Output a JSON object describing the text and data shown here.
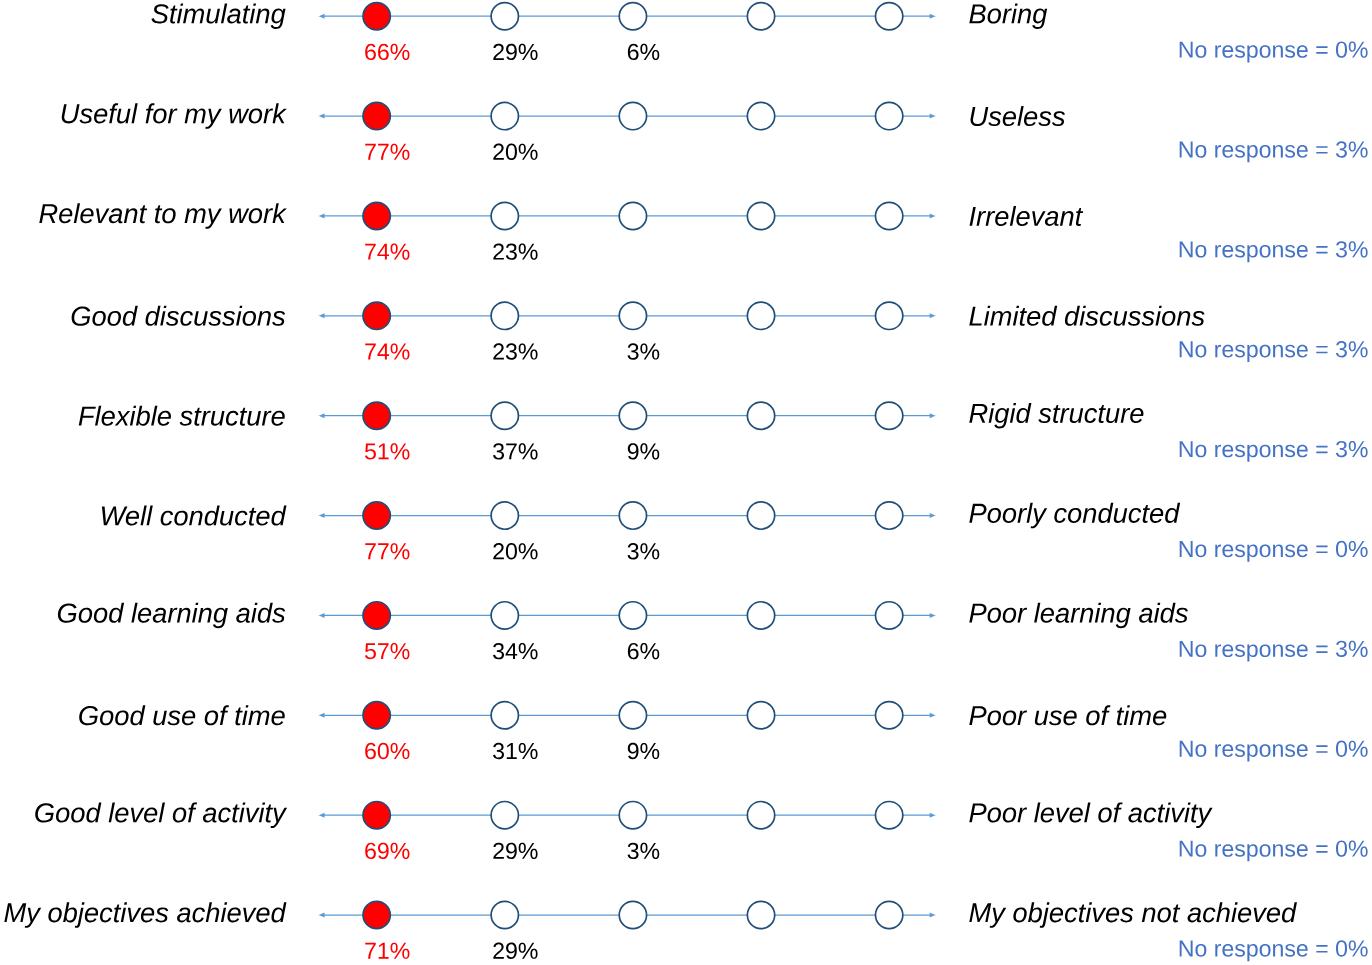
{
  "chart_data": {
    "type": "heatmap",
    "categories": [
      null,
      null,
      null,
      null,
      null
    ],
    "colors": [
      "#ff0000",
      "#1f4e79",
      "#1f4e79",
      "#1f4e79",
      "#1f4e79"
    ],
    "y_categories": [
      "Stimulating",
      "Useful for my work",
      "Relevant to my work",
      "Good discussions",
      "Flexible structure",
      "Well conducted",
      "Good learning aids",
      "Good use of time",
      "Good level of activity",
      "My objectives achieved"
    ],
    "y2_categories": [
      "Boring",
      "Useless",
      "Irrelevant",
      "Limited discussions",
      "Rigid structure",
      "Poorly conducted",
      "Poor learning aids",
      "Poor use of time",
      "Poor level of activity",
      "My objectives not achieved"
    ],
    "cells": [
      [
        66,
        29,
        6,
        null,
        null
      ],
      [
        77,
        20,
        null,
        null,
        null
      ],
      [
        74,
        23,
        null,
        null,
        null
      ],
      [
        74,
        23,
        3,
        null,
        null
      ],
      [
        51,
        37,
        9,
        null,
        null
      ],
      [
        77,
        20,
        3,
        null,
        null
      ],
      [
        57,
        34,
        6,
        null,
        null
      ],
      [
        60,
        31,
        9,
        null,
        null
      ],
      [
        69,
        29,
        3,
        null,
        null
      ],
      [
        71,
        29,
        null,
        null,
        null
      ]
    ],
    "cell_labels": [
      [
        "66%",
        "29%",
        "6%",
        null,
        null
      ],
      [
        "77%",
        "20%",
        null,
        null,
        null
      ],
      [
        "74%",
        "23%",
        null,
        null,
        null
      ],
      [
        "74%",
        "23%",
        "3%",
        null,
        null
      ],
      [
        "51%",
        "37%",
        "9%",
        null,
        null
      ],
      [
        "77%",
        "20%",
        "3%",
        null,
        null
      ],
      [
        "57%",
        "34%",
        "6%",
        null,
        null
      ],
      [
        "60%",
        "31%",
        "9%",
        null,
        null
      ],
      [
        "69%",
        "29%",
        "3%",
        null,
        null
      ],
      [
        "71%",
        "29%",
        null,
        null,
        null
      ]
    ],
    "annotations": [
      "No response = 0%",
      "No response = 3%",
      "No response = 3%",
      "No response = 3%",
      "No response = 3%",
      "No response = 0%",
      "No response = 3%",
      "No response = 0%",
      "No response = 0%",
      "No response = 0%"
    ]
  }
}
